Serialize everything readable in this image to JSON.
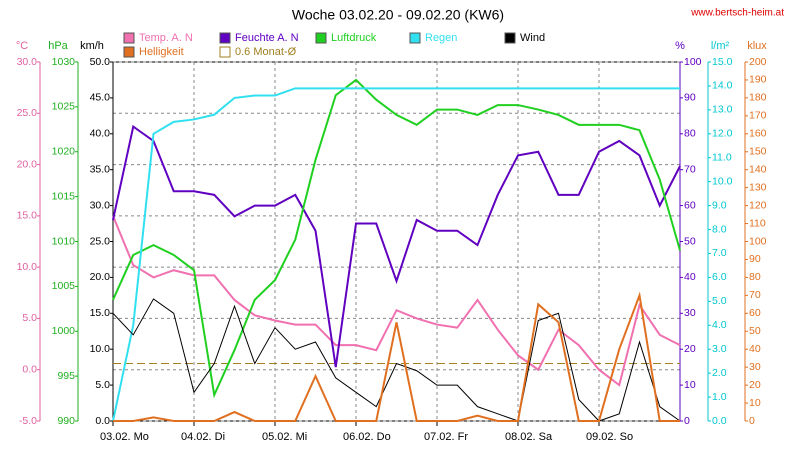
{
  "chart_data": {
    "type": "line",
    "title": "Woche 03.02.20 - 09.02.20 (KW6)",
    "source": "www.bertsch-heim.at",
    "grid": true,
    "xlim": [
      0,
      168
    ],
    "xticks": [
      {
        "value": 0,
        "label": "03.02.  Mo"
      },
      {
        "value": 24,
        "label": "04.02.  Di"
      },
      {
        "value": 48,
        "label": "05.02.  Mi"
      },
      {
        "value": 72,
        "label": "06.02.  Do"
      },
      {
        "value": 96,
        "label": "07.02.  Fr"
      },
      {
        "value": 120,
        "label": "08.02.  Sa"
      },
      {
        "value": 144,
        "label": "09.02.  So"
      }
    ],
    "x": [
      0,
      6,
      12,
      18,
      24,
      30,
      36,
      42,
      48,
      54,
      60,
      66,
      72,
      78,
      84,
      90,
      96,
      102,
      108,
      114,
      120,
      126,
      132,
      138,
      144,
      150,
      156,
      162,
      168
    ],
    "axes": [
      {
        "label": "°C",
        "color": "#e060a0",
        "ylim": [
          -5,
          30
        ],
        "yticks": [
          {
            "value": -5,
            "label": "-5.0"
          },
          {
            "value": 0,
            "label": "0.0"
          },
          {
            "value": 5,
            "label": "5.0"
          },
          {
            "value": 10,
            "label": "10.0"
          },
          {
            "value": 15,
            "label": "15.0"
          },
          {
            "value": 20,
            "label": "20.0"
          },
          {
            "value": 25,
            "label": "25.0"
          },
          {
            "value": 30,
            "label": "30.0"
          }
        ]
      },
      {
        "label": "hPa",
        "color": "#20b020",
        "ylim": [
          990,
          1030
        ],
        "yticks": [
          990,
          995,
          1000,
          1005,
          1010,
          1015,
          1020,
          1025,
          1030
        ]
      },
      {
        "label": "km/h",
        "color": "#000000",
        "ylim": [
          0,
          50
        ],
        "yticks": [
          {
            "value": 0,
            "label": "0.0"
          },
          {
            "value": 5,
            "label": "5.0"
          },
          {
            "value": 10,
            "label": "10.0"
          },
          {
            "value": 15,
            "label": "15.0"
          },
          {
            "value": 20,
            "label": "20.0"
          },
          {
            "value": 25,
            "label": "25.0"
          },
          {
            "value": 30,
            "label": "30.0"
          },
          {
            "value": 35,
            "label": "35.0"
          },
          {
            "value": 40,
            "label": "40.0"
          },
          {
            "value": 45,
            "label": "45.0"
          },
          {
            "value": 50,
            "label": "50.0"
          }
        ]
      },
      {
        "label": "%",
        "color": "#6000c0",
        "ylim": [
          0,
          100
        ],
        "yticks": [
          0,
          10,
          20,
          30,
          40,
          50,
          60,
          70,
          80,
          90,
          100
        ]
      },
      {
        "label": "l/m²",
        "color": "#00c8d0",
        "ylim": [
          0,
          15
        ],
        "yticks": [
          {
            "value": 0,
            "label": "0.0"
          },
          {
            "value": 1,
            "label": "1.0"
          },
          {
            "value": 2,
            "label": "2.0"
          },
          {
            "value": 3,
            "label": "3.0"
          },
          {
            "value": 4,
            "label": "4.0"
          },
          {
            "value": 5,
            "label": "5.0"
          },
          {
            "value": 6,
            "label": "6.0"
          },
          {
            "value": 7,
            "label": "7.0"
          },
          {
            "value": 8,
            "label": "8.0"
          },
          {
            "value": 9,
            "label": "9.0"
          },
          {
            "value": 10,
            "label": "10.0"
          },
          {
            "value": 11,
            "label": "11.0"
          },
          {
            "value": 12,
            "label": "12.0"
          },
          {
            "value": 13,
            "label": "13.0"
          },
          {
            "value": 14,
            "label": "14.0"
          },
          {
            "value": 15,
            "label": "15.0"
          }
        ]
      },
      {
        "label": "klux",
        "color": "#e07020",
        "ylim": [
          0,
          200
        ],
        "yticks": [
          0,
          10,
          20,
          30,
          40,
          50,
          60,
          70,
          80,
          90,
          100,
          110,
          120,
          130,
          140,
          150,
          160,
          170,
          180,
          190,
          200
        ]
      }
    ],
    "series": [
      {
        "name": "Temp. A. N",
        "color": "#f070b0",
        "axis": 0,
        "values": [
          15,
          10.2,
          9,
          9.7,
          9.2,
          9.2,
          6.8,
          5.3,
          4.8,
          4.4,
          4.4,
          2.4,
          2.4,
          1.9,
          5.8,
          5,
          4.4,
          4.1,
          6.8,
          3.9,
          1.4,
          0,
          3.9,
          2.4,
          0,
          -1.5,
          6.3,
          3.4,
          2.4
        ]
      },
      {
        "name": "Feuchte A. N",
        "color": "#6000c0",
        "axis": 3,
        "values": [
          56,
          82,
          78,
          64,
          64,
          63,
          57,
          60,
          60,
          63,
          53,
          15,
          55,
          55,
          39,
          56,
          53,
          53,
          49,
          63,
          74,
          75,
          63,
          63,
          75,
          78,
          74,
          60,
          71
        ]
      },
      {
        "name": "Luftdruck",
        "color": "#20d020",
        "axis": 1,
        "values": [
          1003.5,
          1008.5,
          1009.6,
          1008.5,
          1006.8,
          992.9,
          997.9,
          1003.5,
          1005.7,
          1010.2,
          1019.1,
          1026.3,
          1028,
          1025.8,
          1024.1,
          1023,
          1024.7,
          1024.7,
          1024.1,
          1025.2,
          1025.2,
          1024.7,
          1024.1,
          1023,
          1023,
          1023,
          1022.4,
          1016.9,
          1009
        ]
      },
      {
        "name": "Regen",
        "color": "#30e0f0",
        "axis": 4,
        "values": [
          0,
          4,
          12,
          12.5,
          12.6,
          12.8,
          13.5,
          13.6,
          13.6,
          13.9,
          13.9,
          13.9,
          13.9,
          13.9,
          13.9,
          13.9,
          13.9,
          13.9,
          13.9,
          13.9,
          13.9,
          13.9,
          13.9,
          13.9,
          13.9,
          13.9,
          13.9,
          13.9,
          13.9
        ]
      },
      {
        "name": "Wind",
        "color": "#000000",
        "axis": 2,
        "values": [
          15,
          12,
          17,
          15,
          4,
          8,
          16,
          8,
          13,
          10,
          11,
          6,
          4,
          2,
          8,
          7,
          5,
          5,
          2,
          1,
          0,
          14,
          15,
          3,
          0,
          1,
          11,
          2,
          0
        ]
      },
      {
        "name": "Helligkeit",
        "color": "#e07020",
        "axis": 5,
        "values": [
          0,
          0,
          2,
          0,
          0,
          0,
          5,
          0,
          0,
          0,
          25,
          0,
          0,
          0,
          55,
          0,
          0,
          0,
          3,
          0,
          0,
          65,
          55,
          0,
          0,
          40,
          70,
          0,
          0
        ]
      }
    ],
    "reference": {
      "name": "0.6 Monat-Ø",
      "value": 0.6,
      "axis": 0,
      "color": "#a08020"
    }
  }
}
